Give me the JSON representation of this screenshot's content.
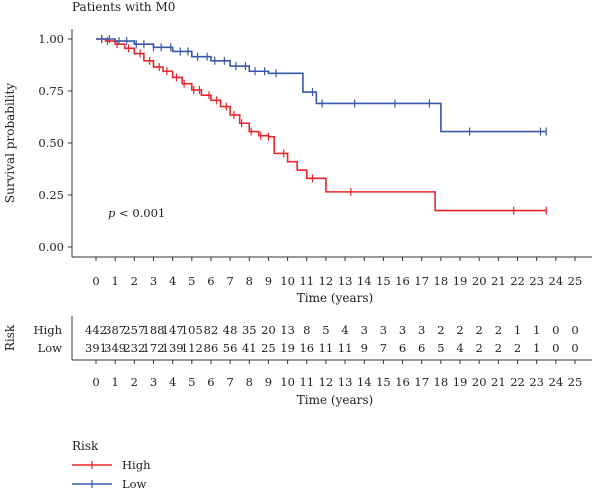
{
  "chart_data": {
    "type": "line",
    "title": "Patients with M0",
    "xlabel": "Time (years)",
    "ylabel": "Survival probability",
    "xlim": [
      0,
      25
    ],
    "ylim": [
      0,
      1
    ],
    "x_ticks": [
      0,
      1,
      2,
      3,
      4,
      5,
      6,
      7,
      8,
      9,
      10,
      11,
      12,
      13,
      14,
      15,
      16,
      17,
      18,
      19,
      20,
      21,
      22,
      23,
      24,
      25
    ],
    "y_ticks": [
      "0.00",
      "0.25",
      "0.50",
      "0.75",
      "1.00"
    ],
    "y_tick_values": [
      0,
      0.25,
      0.5,
      0.75,
      1.0
    ],
    "annotation": "p < 0.001",
    "series": [
      {
        "name": "High",
        "color": "#e8262a",
        "x": [
          0,
          0.5,
          1,
          1.5,
          2,
          2.5,
          3,
          3.5,
          4,
          4.5,
          5,
          5.5,
          6,
          6.5,
          7,
          7.5,
          8,
          8.5,
          9,
          9.3,
          9.3,
          10,
          10,
          10.5,
          10.5,
          11,
          11,
          12,
          12,
          17.7,
          17.7,
          23.5
        ],
        "y": [
          1,
          0.99,
          0.975,
          0.955,
          0.93,
          0.895,
          0.865,
          0.845,
          0.815,
          0.785,
          0.755,
          0.73,
          0.705,
          0.675,
          0.635,
          0.595,
          0.555,
          0.535,
          0.53,
          0.53,
          0.45,
          0.45,
          0.41,
          0.41,
          0.37,
          0.37,
          0.33,
          0.33,
          0.265,
          0.265,
          0.175,
          0.175
        ],
        "censors": [
          0.3,
          0.6,
          1.1,
          1.7,
          2.3,
          2.8,
          3.3,
          3.7,
          4.2,
          4.6,
          5.1,
          5.4,
          5.9,
          6.3,
          6.8,
          7.2,
          7.6,
          8.1,
          8.6,
          9.0,
          9.8,
          11.3,
          13.3,
          21.8,
          23.5
        ]
      },
      {
        "name": "Low",
        "color": "#3a58a8",
        "x": [
          0,
          1,
          2,
          3,
          4,
          5,
          6,
          7,
          8,
          9,
          10,
          10.8,
          10.8,
          11.5,
          11.5,
          18,
          18,
          23.5
        ],
        "y": [
          1,
          0.99,
          0.975,
          0.96,
          0.94,
          0.915,
          0.895,
          0.87,
          0.845,
          0.835,
          0.835,
          0.835,
          0.745,
          0.745,
          0.69,
          0.69,
          0.555,
          0.555
        ],
        "censors": [
          0.3,
          0.7,
          1.2,
          1.6,
          2.1,
          2.5,
          3.0,
          3.4,
          3.9,
          4.4,
          4.8,
          5.3,
          5.8,
          6.2,
          6.7,
          7.3,
          7.8,
          8.3,
          8.8,
          9.4,
          11.3,
          11.8,
          13.5,
          15.6,
          17.4,
          19.5,
          23.2,
          23.5
        ]
      }
    ],
    "risk_table": {
      "title": "Risk",
      "xlabel": "Time (years)",
      "rows": [
        {
          "name": "High",
          "counts": [
            "442",
            "387",
            "257",
            "188",
            "147",
            "105",
            "82",
            "48",
            "35",
            "20",
            "13",
            "8",
            "5",
            "4",
            "3",
            "3",
            "3",
            "3",
            "2",
            "2",
            "2",
            "2",
            "1",
            "1",
            "0",
            "0"
          ]
        },
        {
          "name": "Low",
          "counts": [
            "391",
            "349",
            "232",
            "172",
            "139",
            "112",
            "86",
            "56",
            "41",
            "25",
            "19",
            "16",
            "11",
            "11",
            "9",
            "7",
            "6",
            "6",
            "5",
            "4",
            "2",
            "2",
            "2",
            "1",
            "0",
            "0"
          ]
        }
      ]
    },
    "legend": {
      "title": "Risk",
      "position": "bottom-left",
      "items": [
        "High",
        "Low"
      ]
    }
  }
}
